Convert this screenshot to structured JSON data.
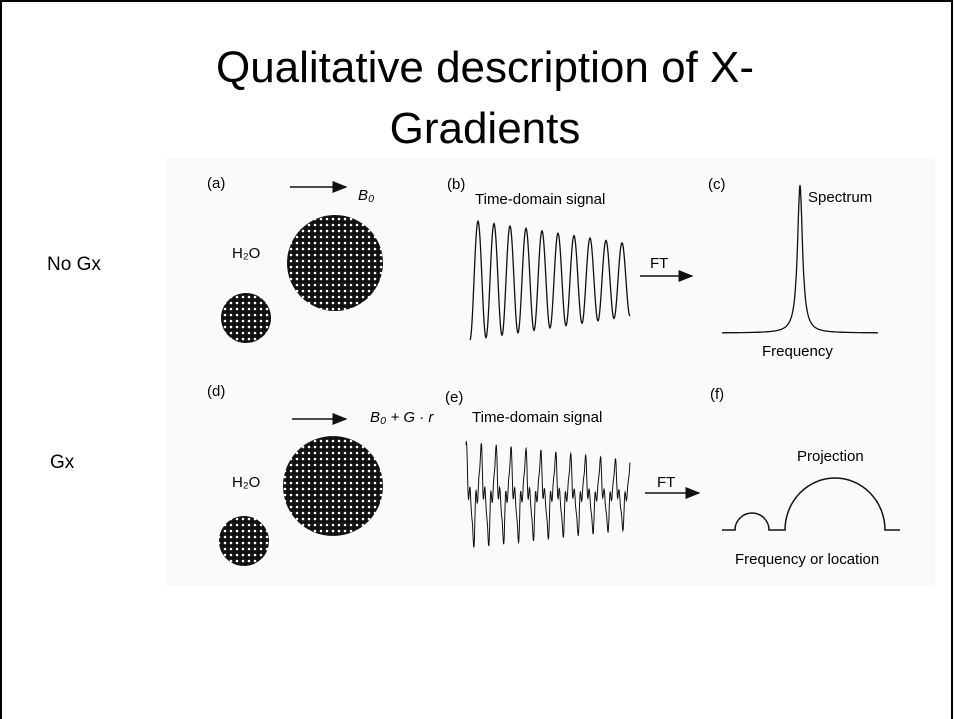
{
  "title_lines": [
    "Qualitative description of X-",
    "Gradients"
  ],
  "row_labels": [
    "No Gx",
    "Gx"
  ],
  "figure": {
    "a": {
      "label": "(a)",
      "field": "B₀",
      "sample": "H₂O"
    },
    "b": {
      "label": "(b)",
      "caption": "Time-domain signal",
      "transform": "FT"
    },
    "c": {
      "label": "(c)",
      "caption": "Spectrum",
      "axis": "Frequency"
    },
    "d": {
      "label": "(d)",
      "field": "B₀ + G · r",
      "sample": "H₂O"
    },
    "e": {
      "label": "(e)",
      "caption": "Time-domain signal",
      "transform": "FT"
    },
    "f": {
      "label": "(f)",
      "caption": "Projection",
      "axis": "Frequency or location"
    }
  }
}
